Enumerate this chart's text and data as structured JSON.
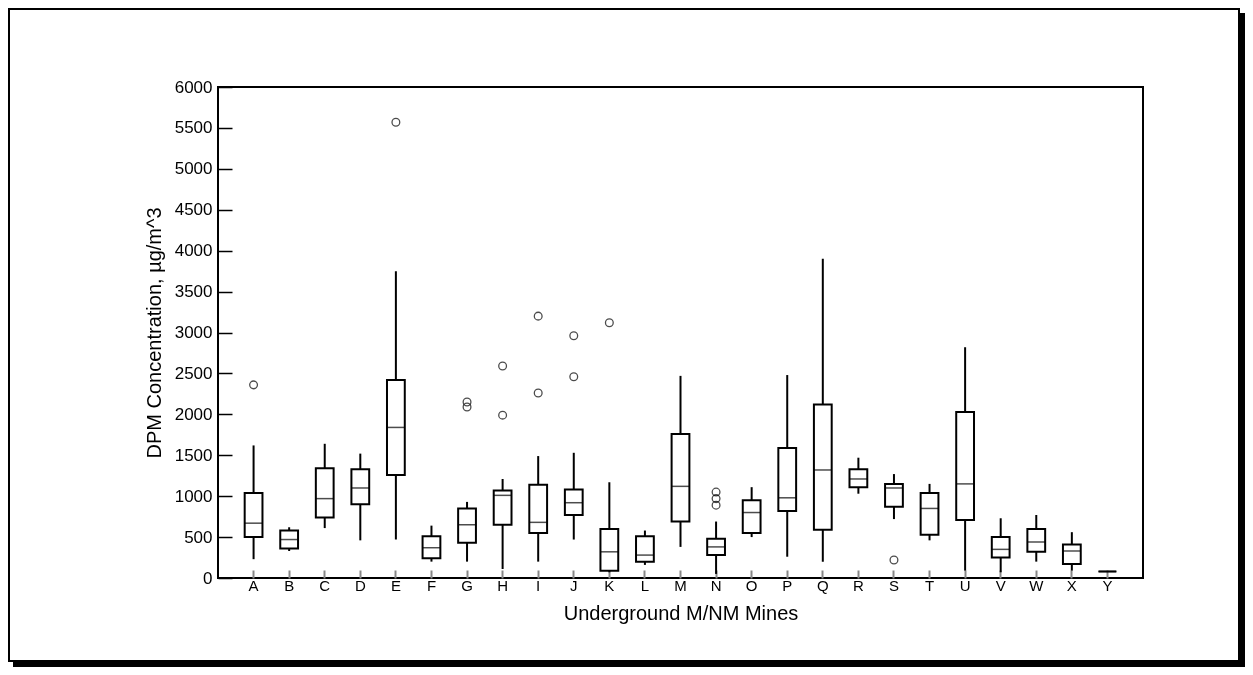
{
  "chart_data": {
    "type": "box",
    "xlabel": "Underground M/NM Mines",
    "ylabel": "DPM Concentration, µg/m^3",
    "categories": [
      "A",
      "B",
      "C",
      "D",
      "E",
      "F",
      "G",
      "H",
      "I",
      "J",
      "K",
      "L",
      "M",
      "N",
      "O",
      "P",
      "Q",
      "R",
      "S",
      "T",
      "U",
      "V",
      "W",
      "X",
      "Y"
    ],
    "ylim": [
      0,
      6000
    ],
    "yticks": [
      0,
      500,
      1000,
      1500,
      2000,
      2500,
      3000,
      3500,
      4000,
      4500,
      5000,
      5500,
      6000
    ],
    "grid": false,
    "boxes": [
      {
        "low": 230,
        "q1": 500,
        "median": 670,
        "q3": 1040,
        "high": 1620,
        "outliers": [
          2360
        ]
      },
      {
        "low": 330,
        "q1": 360,
        "median": 470,
        "q3": 580,
        "high": 620
      },
      {
        "low": 610,
        "q1": 740,
        "median": 970,
        "q3": 1340,
        "high": 1640
      },
      {
        "low": 460,
        "q1": 900,
        "median": 1100,
        "q3": 1330,
        "high": 1520
      },
      {
        "low": 470,
        "q1": 1260,
        "median": 1840,
        "q3": 2420,
        "high": 3750,
        "outliers": [
          5570
        ]
      },
      {
        "low": 200,
        "q1": 240,
        "median": 370,
        "q3": 510,
        "high": 640
      },
      {
        "low": 200,
        "q1": 430,
        "median": 650,
        "q3": 850,
        "high": 930,
        "outliers": [
          2150,
          2090
        ]
      },
      {
        "low": 110,
        "q1": 650,
        "median": 1010,
        "q3": 1070,
        "high": 1210,
        "outliers": [
          2590,
          1990
        ]
      },
      {
        "low": 200,
        "q1": 550,
        "median": 680,
        "q3": 1140,
        "high": 1490,
        "outliers": [
          3200,
          2260
        ]
      },
      {
        "low": 470,
        "q1": 770,
        "median": 920,
        "q3": 1080,
        "high": 1530,
        "outliers": [
          2960,
          2460
        ]
      },
      {
        "low": 70,
        "q1": 90,
        "median": 320,
        "q3": 600,
        "high": 1170,
        "outliers": [
          3120
        ]
      },
      {
        "low": 160,
        "q1": 200,
        "median": 280,
        "q3": 510,
        "high": 580
      },
      {
        "low": 380,
        "q1": 690,
        "median": 1120,
        "q3": 1760,
        "high": 2470
      },
      {
        "low": 50,
        "q1": 280,
        "median": 380,
        "q3": 480,
        "high": 690,
        "outliers": [
          1050,
          970,
          890
        ]
      },
      {
        "low": 500,
        "q1": 550,
        "median": 800,
        "q3": 950,
        "high": 1110
      },
      {
        "low": 260,
        "q1": 820,
        "median": 980,
        "q3": 1590,
        "high": 2480
      },
      {
        "low": 200,
        "q1": 590,
        "median": 1320,
        "q3": 2120,
        "high": 3900
      },
      {
        "low": 1030,
        "q1": 1110,
        "median": 1210,
        "q3": 1330,
        "high": 1470
      },
      {
        "low": 720,
        "q1": 870,
        "median": 1100,
        "q3": 1150,
        "high": 1270,
        "outliers": [
          220
        ]
      },
      {
        "low": 460,
        "q1": 530,
        "median": 850,
        "q3": 1040,
        "high": 1150
      },
      {
        "low": 90,
        "q1": 710,
        "median": 1150,
        "q3": 2030,
        "high": 2820
      },
      {
        "low": 70,
        "q1": 250,
        "median": 350,
        "q3": 500,
        "high": 730
      },
      {
        "low": 200,
        "q1": 320,
        "median": 440,
        "q3": 600,
        "high": 770
      },
      {
        "low": 90,
        "q1": 170,
        "median": 330,
        "q3": 410,
        "high": 560
      },
      {
        "low": 80,
        "q1": 80,
        "median": 80,
        "q3": 80,
        "high": 80
      }
    ]
  }
}
